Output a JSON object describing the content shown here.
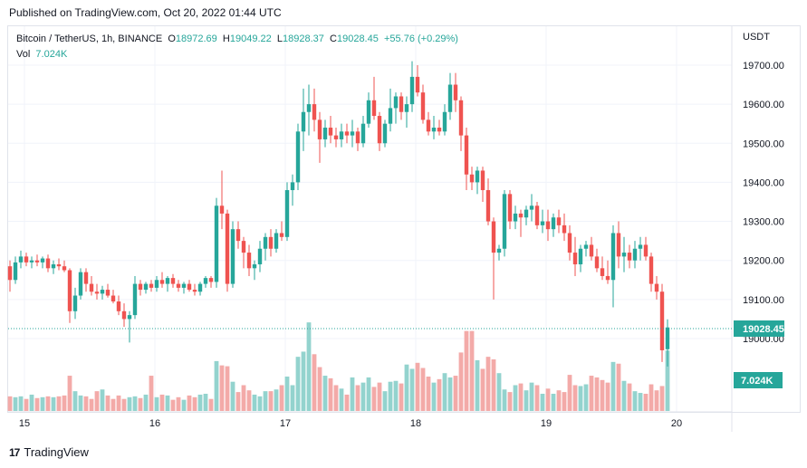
{
  "published": "Published on TradingView.com, Oct 20, 2022 01:44 UTC",
  "legend": {
    "symbol": "Bitcoin / TetherUS, 1h, BINANCE",
    "open_label": "O",
    "open": "18972.69",
    "high_label": "H",
    "high": "19049.22",
    "low_label": "L",
    "low": "18928.37",
    "close_label": "C",
    "close": "19028.45",
    "change": "+55.76 (+0.29%)",
    "vol_label": "Vol",
    "vol_value": "7.024K"
  },
  "currency": "USDT",
  "footer": {
    "logo": "17",
    "brand": "TradingView"
  },
  "colors": {
    "up": "#26a69a",
    "down": "#ef5350",
    "up_vol": "#93d3ce",
    "down_vol": "#f3aaa8",
    "grid": "#f0f3fa"
  },
  "chart_data": {
    "type": "candlestick",
    "price_axis": {
      "ticks": [
        19000,
        19100,
        19200,
        19300,
        19400,
        19500,
        19600,
        19700
      ],
      "tick_labels": [
        "19000.00",
        "19100.00",
        "19200.00",
        "19300.00",
        "19400.00",
        "19500.00",
        "19600.00",
        "19700.00"
      ],
      "ylim": [
        18880,
        19750
      ]
    },
    "time_axis": {
      "tick_labels": [
        "15",
        "16",
        "17",
        "18",
        "19",
        "20"
      ],
      "tick_hour_index": [
        2,
        26,
        50,
        74,
        98,
        122
      ]
    },
    "last_price_label": "19028.45",
    "volume_label": "7.024K",
    "candles": [
      [
        19185,
        19200,
        19120,
        19150
      ],
      [
        19150,
        19210,
        19140,
        19195
      ],
      [
        19195,
        19225,
        19180,
        19210
      ],
      [
        19210,
        19220,
        19185,
        19195
      ],
      [
        19195,
        19210,
        19180,
        19200
      ],
      [
        19200,
        19215,
        19185,
        19195
      ],
      [
        19195,
        19210,
        19180,
        19205
      ],
      [
        19205,
        19215,
        19170,
        19180
      ],
      [
        19180,
        19200,
        19165,
        19190
      ],
      [
        19190,
        19205,
        19175,
        19185
      ],
      [
        19185,
        19200,
        19170,
        19175
      ],
      [
        19175,
        19180,
        19040,
        19070
      ],
      [
        19070,
        19130,
        19050,
        19110
      ],
      [
        19110,
        19180,
        19100,
        19170
      ],
      [
        19170,
        19180,
        19120,
        19140
      ],
      [
        19140,
        19160,
        19110,
        19120
      ],
      [
        19120,
        19140,
        19100,
        19115
      ],
      [
        19115,
        19135,
        19100,
        19125
      ],
      [
        19125,
        19140,
        19105,
        19110
      ],
      [
        19110,
        19125,
        19090,
        19095
      ],
      [
        19095,
        19110,
        19060,
        19070
      ],
      [
        19070,
        19090,
        19030,
        19050
      ],
      [
        19050,
        19070,
        18990,
        19060
      ],
      [
        19060,
        19160,
        19050,
        19140
      ],
      [
        19140,
        19150,
        19110,
        19125
      ],
      [
        19125,
        19145,
        19115,
        19140
      ],
      [
        19140,
        19150,
        19120,
        19130
      ],
      [
        19130,
        19160,
        19120,
        19150
      ],
      [
        19150,
        19170,
        19130,
        19140
      ],
      [
        19140,
        19160,
        19120,
        19155
      ],
      [
        19155,
        19165,
        19130,
        19140
      ],
      [
        19140,
        19150,
        19120,
        19130
      ],
      [
        19130,
        19145,
        19115,
        19140
      ],
      [
        19140,
        19150,
        19120,
        19125
      ],
      [
        19125,
        19140,
        19110,
        19120
      ],
      [
        19120,
        19145,
        19110,
        19140
      ],
      [
        19140,
        19160,
        19130,
        19155
      ],
      [
        19155,
        19160,
        19130,
        19145
      ],
      [
        19145,
        19360,
        19130,
        19340
      ],
      [
        19340,
        19430,
        19280,
        19320
      ],
      [
        19320,
        19330,
        19120,
        19140
      ],
      [
        19140,
        19300,
        19130,
        19280
      ],
      [
        19280,
        19300,
        19230,
        19250
      ],
      [
        19250,
        19260,
        19180,
        19220
      ],
      [
        19220,
        19240,
        19160,
        19180
      ],
      [
        19180,
        19200,
        19150,
        19190
      ],
      [
        19190,
        19250,
        19170,
        19230
      ],
      [
        19230,
        19270,
        19200,
        19260
      ],
      [
        19260,
        19280,
        19210,
        19230
      ],
      [
        19230,
        19280,
        19220,
        19270
      ],
      [
        19270,
        19300,
        19250,
        19260
      ],
      [
        19260,
        19400,
        19250,
        19380
      ],
      [
        19380,
        19420,
        19340,
        19400
      ],
      [
        19400,
        19550,
        19380,
        19530
      ],
      [
        19530,
        19640,
        19480,
        19580
      ],
      [
        19580,
        19650,
        19520,
        19600
      ],
      [
        19600,
        19640,
        19530,
        19560
      ],
      [
        19560,
        19580,
        19450,
        19510
      ],
      [
        19510,
        19560,
        19490,
        19540
      ],
      [
        19540,
        19570,
        19500,
        19520
      ],
      [
        19520,
        19540,
        19490,
        19510
      ],
      [
        19510,
        19550,
        19490,
        19530
      ],
      [
        19530,
        19550,
        19500,
        19520
      ],
      [
        19520,
        19560,
        19490,
        19530
      ],
      [
        19530,
        19540,
        19480,
        19500
      ],
      [
        19500,
        19570,
        19490,
        19550
      ],
      [
        19550,
        19630,
        19540,
        19610
      ],
      [
        19610,
        19670,
        19560,
        19570
      ],
      [
        19570,
        19580,
        19480,
        19500
      ],
      [
        19500,
        19560,
        19490,
        19550
      ],
      [
        19550,
        19640,
        19530,
        19590
      ],
      [
        19590,
        19630,
        19550,
        19620
      ],
      [
        19620,
        19630,
        19560,
        19580
      ],
      [
        19580,
        19620,
        19540,
        19600
      ],
      [
        19600,
        19710,
        19580,
        19670
      ],
      [
        19670,
        19700,
        19620,
        19630
      ],
      [
        19630,
        19650,
        19550,
        19560
      ],
      [
        19560,
        19580,
        19520,
        19530
      ],
      [
        19530,
        19570,
        19510,
        19540
      ],
      [
        19540,
        19560,
        19520,
        19530
      ],
      [
        19530,
        19600,
        19520,
        19580
      ],
      [
        19580,
        19680,
        19560,
        19650
      ],
      [
        19650,
        19680,
        19580,
        19610
      ],
      [
        19610,
        19620,
        19480,
        19520
      ],
      [
        19520,
        19540,
        19380,
        19420
      ],
      [
        19420,
        19440,
        19380,
        19400
      ],
      [
        19400,
        19440,
        19370,
        19430
      ],
      [
        19430,
        19440,
        19350,
        19380
      ],
      [
        19380,
        19410,
        19290,
        19300
      ],
      [
        19300,
        19310,
        19100,
        19220
      ],
      [
        19220,
        19240,
        19200,
        19230
      ],
      [
        19230,
        19380,
        19210,
        19370
      ],
      [
        19370,
        19380,
        19280,
        19300
      ],
      [
        19300,
        19340,
        19280,
        19320
      ],
      [
        19320,
        19330,
        19260,
        19310
      ],
      [
        19310,
        19340,
        19290,
        19330
      ],
      [
        19330,
        19370,
        19300,
        19340
      ],
      [
        19340,
        19350,
        19280,
        19290
      ],
      [
        19290,
        19330,
        19270,
        19300
      ],
      [
        19300,
        19330,
        19250,
        19280
      ],
      [
        19280,
        19320,
        19260,
        19310
      ],
      [
        19310,
        19330,
        19270,
        19290
      ],
      [
        19290,
        19320,
        19250,
        19270
      ],
      [
        19270,
        19290,
        19200,
        19220
      ],
      [
        19220,
        19260,
        19160,
        19190
      ],
      [
        19190,
        19240,
        19170,
        19230
      ],
      [
        19230,
        19250,
        19210,
        19240
      ],
      [
        19240,
        19260,
        19200,
        19210
      ],
      [
        19210,
        19230,
        19170,
        19180
      ],
      [
        19180,
        19210,
        19150,
        19160
      ],
      [
        19160,
        19200,
        19140,
        19150
      ],
      [
        19150,
        19290,
        19080,
        19270
      ],
      [
        19270,
        19300,
        19180,
        19210
      ],
      [
        19210,
        19260,
        19170,
        19220
      ],
      [
        19220,
        19240,
        19180,
        19200
      ],
      [
        19200,
        19250,
        19180,
        19230
      ],
      [
        19230,
        19260,
        19200,
        19240
      ],
      [
        19240,
        19260,
        19200,
        19210
      ],
      [
        19210,
        19220,
        19120,
        19140
      ],
      [
        19140,
        19160,
        19100,
        19120
      ],
      [
        19120,
        19140,
        18940,
        18970
      ],
      [
        18972.69,
        19049.22,
        18928.37,
        19028.45
      ]
    ],
    "volumes": [
      1.7,
      1.6,
      1.7,
      1.4,
      1.9,
      1.5,
      1.6,
      1.7,
      1.6,
      1.7,
      1.8,
      4.1,
      2.3,
      1.8,
      1.7,
      1.4,
      2.3,
      2.5,
      1.8,
      1.4,
      1.8,
      1.4,
      1.6,
      1.7,
      1.5,
      1.9,
      4.1,
      1.6,
      1.9,
      1.8,
      1.3,
      1.6,
      1.3,
      1.8,
      1.6,
      1.9,
      2.0,
      1.4,
      5.8,
      5.3,
      5.2,
      3.4,
      2.2,
      3.0,
      2.4,
      1.9,
      1.7,
      2.3,
      2.3,
      2.5,
      3.0,
      4.0,
      3.0,
      6.3,
      6.9,
      10.3,
      6.6,
      5.1,
      4.1,
      3.8,
      3.0,
      2.6,
      1.9,
      3.9,
      3.0,
      3.3,
      3.9,
      2.8,
      3.3,
      2.3,
      3.4,
      3.5,
      3.2,
      5.4,
      4.9,
      5.6,
      5.0,
      4.0,
      3.3,
      3.7,
      4.4,
      3.9,
      4.1,
      6.8,
      9.3,
      9.3,
      5.9,
      4.9,
      6.3,
      6.0,
      4.4,
      2.5,
      2.2,
      3.0,
      3.2,
      2.4,
      3.3,
      3.0,
      2.0,
      2.6,
      2.0,
      2.4,
      2.2,
      4.2,
      3.0,
      2.9,
      3.1,
      4.1,
      3.9,
      3.6,
      3.3,
      5.7,
      5.5,
      3.5,
      3.2,
      2.3,
      2.1,
      2.0,
      3.1,
      2.4,
      2.9,
      7.024
    ]
  }
}
